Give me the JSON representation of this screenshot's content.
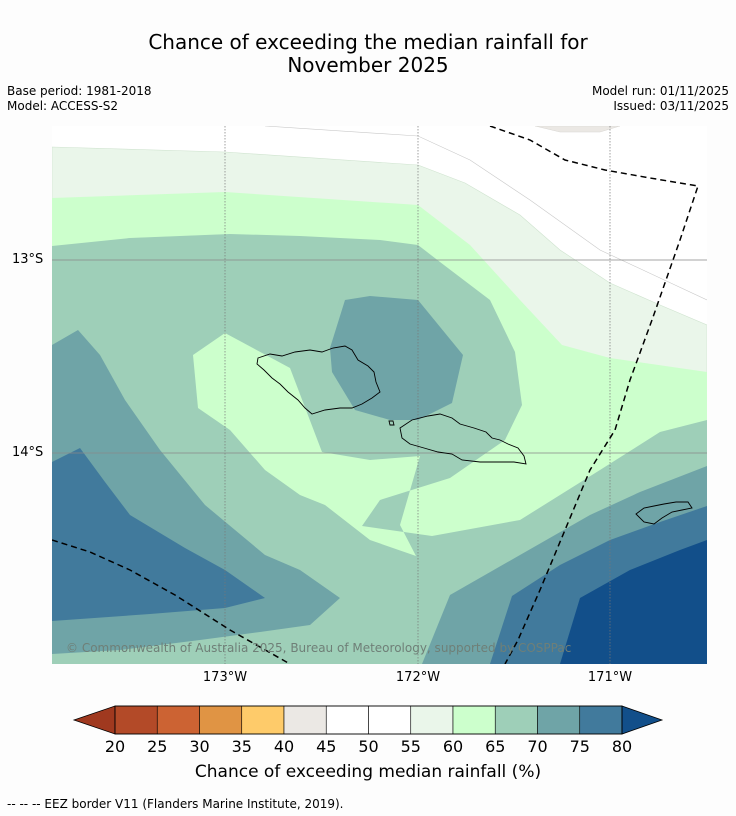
{
  "title_line1": "Chance of exceeding the median rainfall for",
  "title_line2": "November 2025",
  "meta_left": {
    "base_period": "Base period: 1981-2018",
    "model": "Model: ACCESS-S2"
  },
  "meta_right": {
    "model_run": "Model run: 01/11/2025",
    "issued": "Issued: 03/11/2025"
  },
  "map": {
    "lat_labels": [
      "13°S",
      "14°S"
    ],
    "lon_labels": [
      "173°W",
      "172°W",
      "171°W"
    ],
    "copyright": "© Commonwealth of Australia 2025, Bureau of Meteorology, supported by COSPPac"
  },
  "colorbar": {
    "ticks": [
      "20",
      "25",
      "30",
      "35",
      "40",
      "45",
      "50",
      "55",
      "60",
      "65",
      "70",
      "75",
      "80"
    ],
    "colors": [
      "#a0391f",
      "#b34a28",
      "#cc6333",
      "#e09444",
      "#fecb6a",
      "#ebe8e4",
      "#ffffff",
      "#ffffff",
      "#eaf6ea",
      "#ccffcc",
      "#9ecfb8",
      "#6fa4a7",
      "#417a9c",
      "#124f8a"
    ],
    "label": "Chance of exceeding median rainfall (%)"
  },
  "footnote": "--  --  -- EEZ border V11 (Flanders Marine Institute, 2019)."
}
